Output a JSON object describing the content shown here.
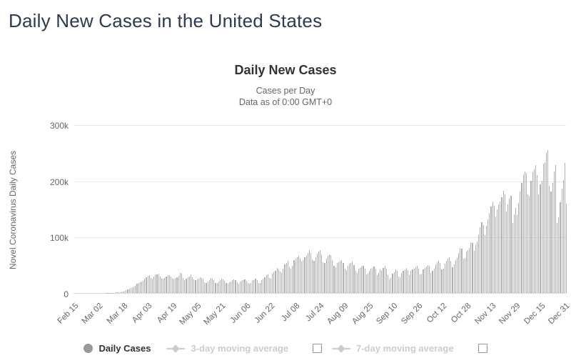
{
  "page": {
    "title": "Daily New Cases in the United States"
  },
  "chart": {
    "title": "Daily New Cases",
    "subtitle_line1": "Cases per Day",
    "subtitle_line2": "Data as of 0:00 GMT+0",
    "y_axis_title": "Novel Coronavirus Daily Cases",
    "colors": {
      "bar": "#b0b0b0",
      "gridline": "#e6e6e6",
      "axis_line": "#ccd6eb",
      "tick_text": "#666666",
      "title_text": "#333333",
      "page_title_text": "#2c3a52",
      "legend_active_text": "#333333",
      "legend_disabled": "#cccccc",
      "legend_marker": "#999999"
    }
  },
  "legend": {
    "items": [
      {
        "label": "Daily Cases",
        "marker": "circle",
        "enabled": true,
        "checkbox": false
      },
      {
        "label": "3-day moving average",
        "marker": "line-diamond",
        "enabled": false,
        "checkbox": true
      },
      {
        "label": "7-day moving average",
        "marker": "line-diamond",
        "enabled": false,
        "checkbox": true
      }
    ]
  },
  "chart_data": {
    "type": "bar",
    "title": "Daily New Cases",
    "xlabel": "",
    "ylabel": "Novel Coronavirus Daily Cases",
    "ylim": [
      0,
      300000
    ],
    "grid": true,
    "legend_position": "bottom",
    "x_start_date": "Feb 15",
    "x_end_date": "Dec 31",
    "x_tick_interval_days": 16,
    "x_tick_labels": [
      "Feb 15",
      "Mar 02",
      "Mar 18",
      "Apr 03",
      "Apr 19",
      "May 05",
      "May 21",
      "Jun 06",
      "Jun 22",
      "Jul 08",
      "Jul 24",
      "Aug 09",
      "Aug 25",
      "Sep 10",
      "Sep 26",
      "Oct 12",
      "Oct 28",
      "Nov 13",
      "Nov 29",
      "Dec 15",
      "Dec 31"
    ],
    "y_ticks": [
      {
        "value": 0,
        "label": "0"
      },
      {
        "value": 100000,
        "label": "100k"
      },
      {
        "value": 200000,
        "label": "200k"
      },
      {
        "value": 300000,
        "label": "300k"
      }
    ],
    "series_name": "Daily Cases",
    "values": [
      0,
      0,
      0,
      0,
      0,
      0,
      1,
      1,
      0,
      1,
      0,
      0,
      1,
      2,
      5,
      5,
      20,
      15,
      30,
      50,
      80,
      120,
      150,
      230,
      300,
      400,
      520,
      630,
      800,
      950,
      1300,
      1900,
      2800,
      4200,
      5600,
      6300,
      7500,
      9000,
      10500,
      11500,
      12500,
      17000,
      18500,
      19800,
      20500,
      21500,
      25000,
      27500,
      30500,
      32500,
      27000,
      25500,
      29500,
      32000,
      33500,
      34000,
      30000,
      26500,
      25000,
      27000,
      29500,
      31500,
      32000,
      30000,
      26000,
      25500,
      26500,
      28500,
      30500,
      36000,
      34000,
      26500,
      23500,
      25000,
      27500,
      30000,
      33500,
      28000,
      24500,
      22500,
      24500,
      25500,
      28500,
      27000,
      25500,
      19500,
      18500,
      21000,
      22500,
      26500,
      25000,
      23500,
      18000,
      17500,
      20500,
      22500,
      25500,
      24000,
      21500,
      18500,
      17000,
      19000,
      20500,
      23000,
      24500,
      23500,
      19500,
      16500,
      20500,
      21500,
      22500,
      24500,
      22000,
      17500,
      16000,
      18500,
      21500,
      23500,
      25500,
      23000,
      18000,
      17500,
      23500,
      25500,
      27500,
      31500,
      33000,
      26500,
      25500,
      34500,
      37000,
      40000,
      45000,
      42000,
      38500,
      35500,
      44000,
      51000,
      54000,
      57000,
      46000,
      43000,
      48000,
      59000,
      61000,
      64000,
      67000,
      62000,
      56000,
      59000,
      64000,
      67000,
      71000,
      76000,
      72000,
      60000,
      57000,
      64000,
      70000,
      74000,
      77000,
      68000,
      55000,
      53000,
      61000,
      66000,
      69000,
      68000,
      59000,
      48000,
      46000,
      53000,
      55000,
      57000,
      59000,
      54000,
      43000,
      41000,
      49000,
      52000,
      54000,
      56000,
      50000,
      39000,
      36000,
      43000,
      45000,
      47000,
      49000,
      44000,
      33000,
      34000,
      39000,
      43000,
      45000,
      47000,
      42000,
      32000,
      36000,
      42000,
      40000,
      45000,
      48000,
      43000,
      32000,
      24000,
      27000,
      35000,
      37000,
      42000,
      39000,
      30000,
      28000,
      36000,
      39000,
      42000,
      45000,
      41000,
      32000,
      40000,
      42000,
      44000,
      46000,
      48000,
      43000,
      33000,
      35000,
      42000,
      45000,
      47000,
      50000,
      49000,
      36000,
      40000,
      44000,
      51000,
      55000,
      57000,
      53000,
      42000,
      44000,
      52000,
      57000,
      61000,
      64000,
      58000,
      46000,
      51000,
      59000,
      63000,
      72000,
      80000,
      79000,
      61000,
      63000,
      74000,
      76000,
      80000,
      91000,
      89000,
      75000,
      85000,
      92000,
      103000,
      117000,
      127000,
      121000,
      104000,
      120000,
      131000,
      143000,
      154000,
      164000,
      156000,
      136000,
      149000,
      158000,
      163000,
      171000,
      183000,
      176000,
      146000,
      158000,
      169000,
      173000,
      125000,
      140000,
      152000,
      139000,
      161000,
      181000,
      196000,
      211000,
      217000,
      214000,
      176000,
      174000,
      201000,
      216000,
      221000,
      229000,
      211000,
      176000,
      194000,
      201000,
      231000,
      234000,
      250000,
      255000,
      191000,
      181000,
      196000,
      217000,
      229000,
      125000,
      135000,
      162000,
      186000,
      202000,
      232000,
      160000
    ]
  }
}
